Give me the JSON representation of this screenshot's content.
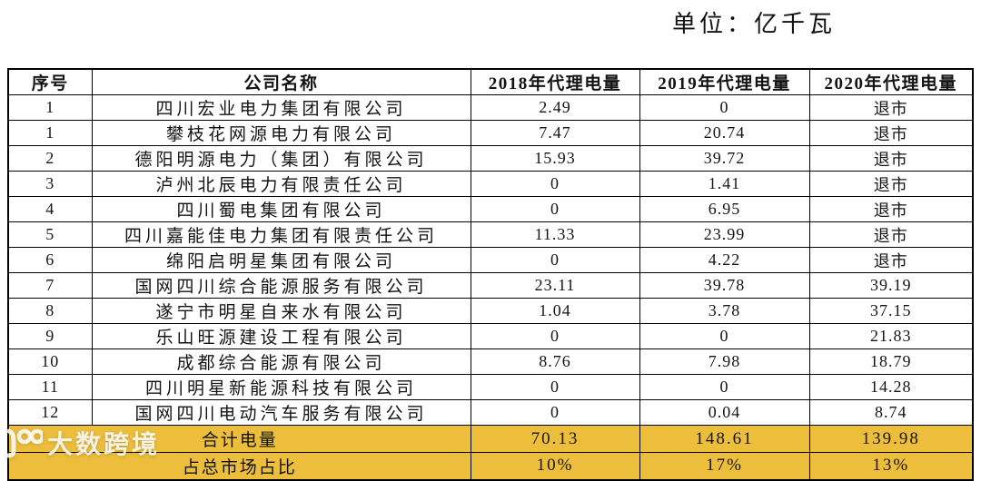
{
  "unit_label": "单位：亿千瓦",
  "table": {
    "columns": [
      "序号",
      "公司名称",
      "2018年代理电量",
      "2019年代理电量",
      "2020年代理电量"
    ],
    "rows": [
      [
        "1",
        "四川宏业电力集团有限公司",
        "2.49",
        "0",
        "退市"
      ],
      [
        "1",
        "攀枝花网源电力有限公司",
        "7.47",
        "20.74",
        "退市"
      ],
      [
        "2",
        "德阳明源电力（集团）有限公司",
        "15.93",
        "39.72",
        "退市"
      ],
      [
        "3",
        "泸州北辰电力有限责任公司",
        "0",
        "1.41",
        "退市"
      ],
      [
        "4",
        "四川蜀电集团有限公司",
        "0",
        "6.95",
        "退市"
      ],
      [
        "5",
        "四川嘉能佳电力集团有限责任公司",
        "11.33",
        "23.99",
        "退市"
      ],
      [
        "6",
        "绵阳启明星集团有限公司",
        "0",
        "4.22",
        "退市"
      ],
      [
        "7",
        "国网四川综合能源服务有限公司",
        "23.11",
        "39.78",
        "39.19"
      ],
      [
        "8",
        "遂宁市明星自来水有限公司",
        "1.04",
        "3.78",
        "37.15"
      ],
      [
        "9",
        "乐山旺源建设工程有限公司",
        "0",
        "0",
        "21.83"
      ],
      [
        "10",
        "成都综合能源有限公司",
        "8.76",
        "7.98",
        "18.79"
      ],
      [
        "11",
        "四川明星新能源科技有限公司",
        "0",
        "0",
        "14.28"
      ],
      [
        "12",
        "国网四川电动汽车服务有限公司",
        "0",
        "0.04",
        "8.74"
      ]
    ],
    "totals": [
      {
        "label": "合计电量",
        "values": [
          "70.13",
          "148.61",
          "139.98"
        ]
      },
      {
        "label": "占总市场占比",
        "values": [
          "10%",
          "17%",
          "13%"
        ]
      }
    ]
  },
  "colors": {
    "highlight_yellow": "#EDBE3B",
    "border_black": "#000000",
    "text": "#141414"
  },
  "watermark": {
    "text": "大数跨境",
    "logo": "100-logo-icon"
  }
}
